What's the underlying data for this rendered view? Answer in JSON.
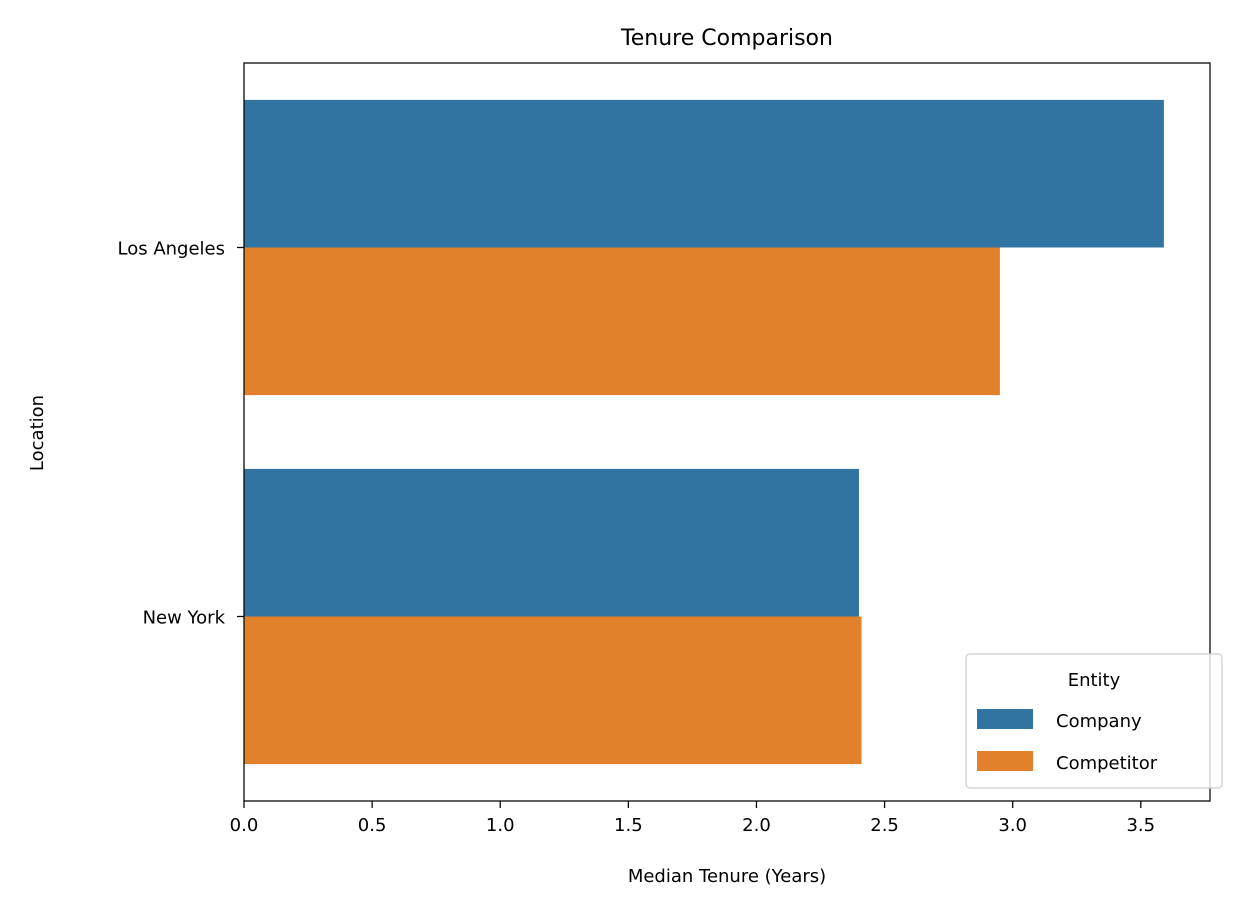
{
  "chart_data": {
    "type": "bar",
    "orientation": "horizontal",
    "title": "Tenure Comparison",
    "xlabel": "Median Tenure (Years)",
    "ylabel": "Location",
    "categories": [
      "Los Angeles",
      "New York"
    ],
    "series": [
      {
        "name": "Company",
        "values": [
          3.59,
          2.4
        ],
        "color": "#3274a1"
      },
      {
        "name": "Competitor",
        "values": [
          2.95,
          2.41
        ],
        "color": "#e1812c"
      }
    ],
    "xlim": [
      0,
      3.77
    ],
    "xticks": [
      0.0,
      0.5,
      1.0,
      1.5,
      2.0,
      2.5,
      3.0,
      3.5
    ],
    "xtick_labels": [
      "0.0",
      "0.5",
      "1.0",
      "1.5",
      "2.0",
      "2.5",
      "3.0",
      "3.5"
    ],
    "legend": {
      "title": "Entity",
      "placement": "lower-right"
    },
    "grid": false
  }
}
